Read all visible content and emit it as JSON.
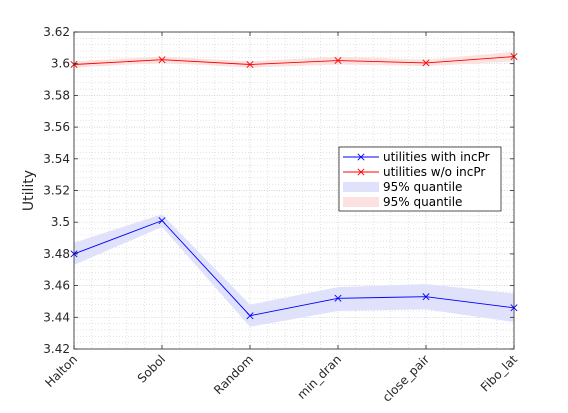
{
  "chart_data": {
    "type": "line",
    "title": "",
    "xlabel": "",
    "ylabel": "Utility",
    "categories": [
      "Halton",
      "Sobol",
      "Random",
      "min_dran",
      "close_pair",
      "Fibo_lat"
    ],
    "ylim": [
      3.42,
      3.62
    ],
    "yticks": [
      3.42,
      3.44,
      3.46,
      3.48,
      3.5,
      3.52,
      3.54,
      3.56,
      3.58,
      3.6,
      3.62
    ],
    "ytick_labels": [
      "3.42",
      "3.44",
      "3.46",
      "3.48",
      "3.5",
      "3.52",
      "3.54",
      "3.56",
      "3.58",
      "3.6",
      "3.62"
    ],
    "grid": true,
    "minor_grid": true,
    "legend_position": "right",
    "series": [
      {
        "name": "utilities with incPr",
        "color": "#0000ff",
        "marker": "x",
        "values": [
          3.48,
          3.501,
          3.441,
          3.452,
          3.453,
          3.446
        ]
      },
      {
        "name": "utilities w/o incPr",
        "color": "#ff0000",
        "marker": "x",
        "values": [
          3.5995,
          3.6025,
          3.5995,
          3.602,
          3.6005,
          3.6045
        ]
      }
    ],
    "bands": [
      {
        "name": "95% quantile",
        "color": "#e0e2fc",
        "lower": [
          3.473,
          3.497,
          3.434,
          3.444,
          3.445,
          3.437
        ],
        "upper": [
          3.487,
          3.505,
          3.448,
          3.459,
          3.461,
          3.455
        ]
      },
      {
        "name": "95% quantile",
        "color": "#fce1e1",
        "lower": [
          3.5975,
          3.6005,
          3.5975,
          3.5995,
          3.5985,
          3.6015
        ],
        "upper": [
          3.6015,
          3.6045,
          3.6015,
          3.6045,
          3.6025,
          3.6075
        ]
      }
    ]
  }
}
